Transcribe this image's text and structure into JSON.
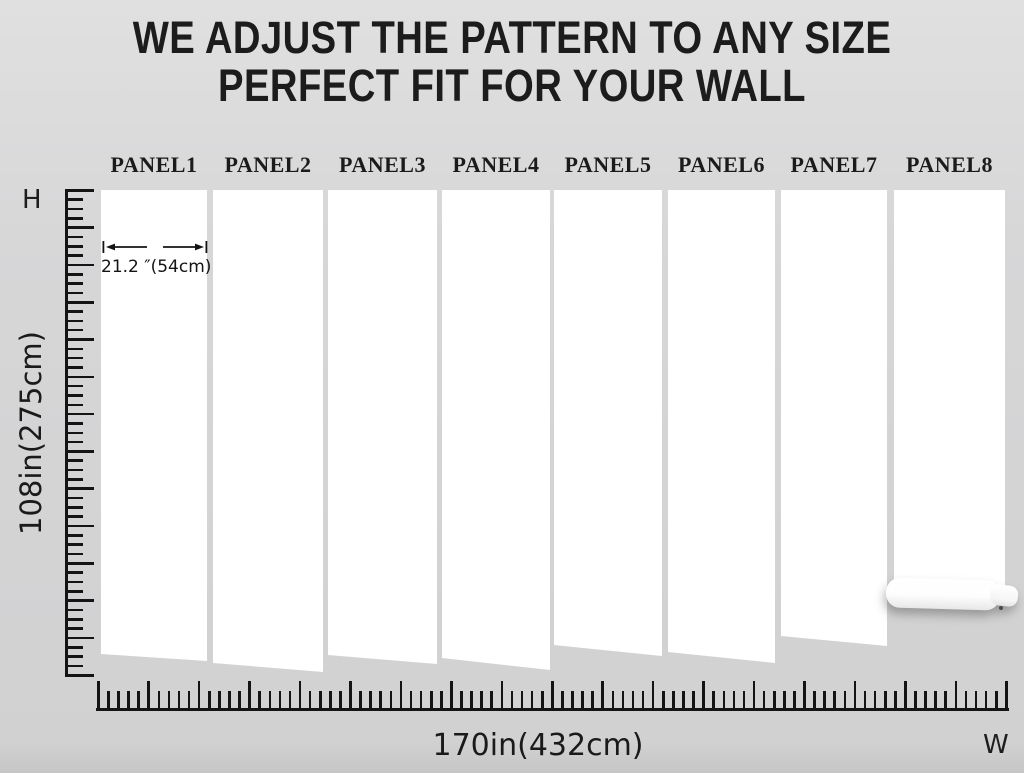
{
  "header": {
    "line1": "WE ADJUST THE PATTERN TO ANY SIZE",
    "line2": "PERFECT FIT FOR YOUR WALL"
  },
  "panels": [
    {
      "label": "PANEL1"
    },
    {
      "label": "PANEL2"
    },
    {
      "label": "PANEL3"
    },
    {
      "label": "PANEL4"
    },
    {
      "label": "PANEL5"
    },
    {
      "label": "PANEL6"
    },
    {
      "label": "PANEL7"
    },
    {
      "label": "PANEL8"
    }
  ],
  "panel_width_note": {
    "text": "21.2 ″(54cm)"
  },
  "height_ruler": {
    "axis_letter": "H",
    "label": "108in(275cm)",
    "minor_intervals": 52,
    "long_tick_every": 4
  },
  "width_ruler": {
    "axis_letter": "W",
    "label": "170in(432cm)",
    "minor_intervals": 90,
    "long_tick_every": 5
  },
  "colors": {
    "background": "#d5d5d6",
    "header_band": "#dcdcdd",
    "panel": "#ffffff",
    "ink": "#161616"
  }
}
